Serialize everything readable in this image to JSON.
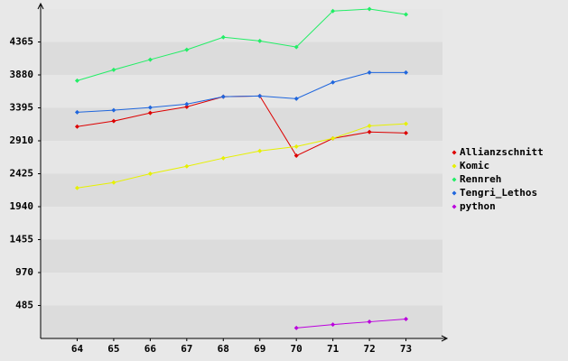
{
  "chart_data": {
    "type": "line",
    "categories": [
      "64",
      "65",
      "66",
      "67",
      "68",
      "69",
      "70",
      "71",
      "72",
      "73"
    ],
    "series": [
      {
        "name": "Allianzschnitt",
        "color": "#dd0000",
        "values": [
          3120,
          3200,
          3320,
          3410,
          3560,
          3570,
          2690,
          2945,
          3040,
          3025
        ]
      },
      {
        "name": "Komic",
        "color": "#e6f000",
        "values": [
          2215,
          2295,
          2425,
          2535,
          2655,
          2760,
          2825,
          2945,
          3130,
          3160
        ]
      },
      {
        "name": "Rennreh",
        "color": "#22ee66",
        "values": [
          3795,
          3955,
          4105,
          4250,
          4435,
          4380,
          4290,
          4820,
          4850,
          4770
        ]
      },
      {
        "name": "Tengri_Lethos",
        "color": "#1f66dd",
        "values": [
          3330,
          3360,
          3400,
          3450,
          3560,
          3570,
          3530,
          3770,
          3915,
          3915
        ]
      },
      {
        "name": "python",
        "color": "#bb00dd",
        "values": [
          null,
          null,
          null,
          null,
          null,
          null,
          155,
          205,
          245,
          285
        ]
      }
    ],
    "ylim": [
      0,
      4850
    ],
    "yticks": [
      485,
      970,
      1455,
      1940,
      2425,
      2910,
      3395,
      3880,
      4365
    ],
    "grid": true
  }
}
